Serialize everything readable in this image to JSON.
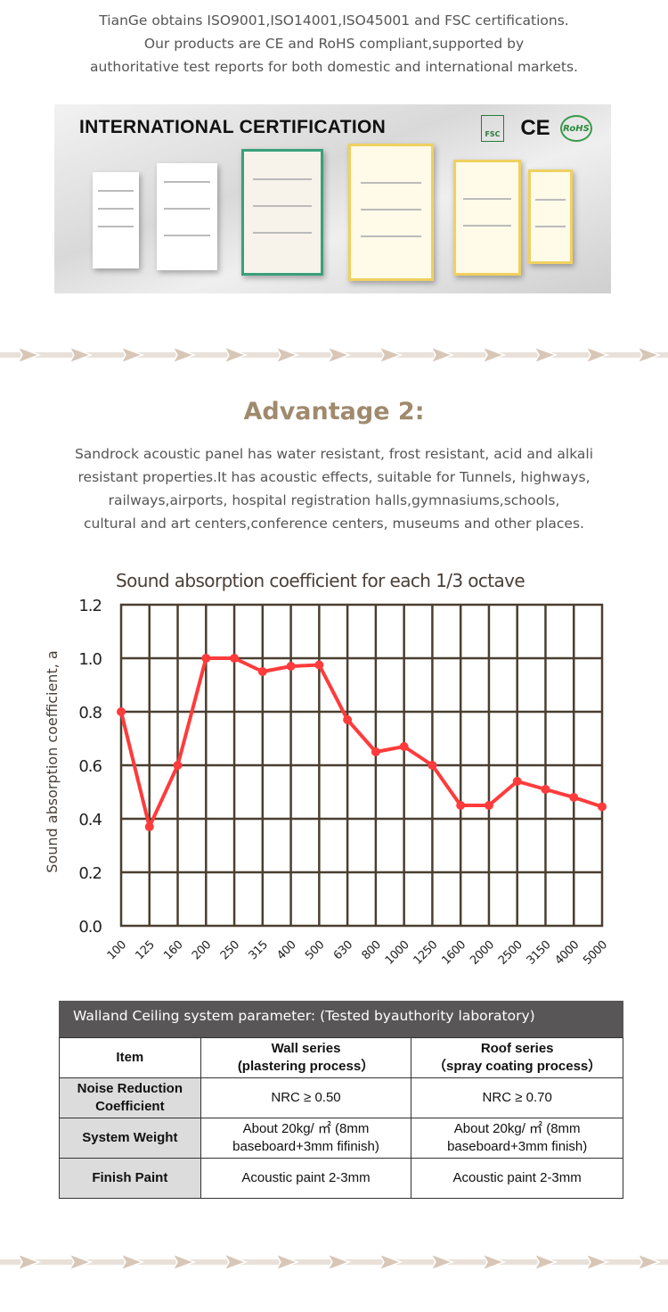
{
  "intro": {
    "lines": [
      "TianGe obtains ISO9001,ISO14001,ISO45001 and FSC certifications.",
      "Our products are CE and RoHS compliant,supported by",
      "authoritative test reports for both domestic and international markets."
    ]
  },
  "banner": {
    "title": "INTERNATIONAL CERTIFICATION",
    "logos": [
      "FSC",
      "CE",
      "RoHS"
    ]
  },
  "advantage": {
    "heading": "Advantage 2:",
    "lines": [
      "Sandrock acoustic panel has water resistant, frost resistant, acid and alkali",
      "resistant properties.It has acoustic effects, suitable for Tunnels, highways,",
      "railways,airports, hospital registration halls,gymnasiums,schools,",
      "cultural and art centers,conference centers, museums and other places."
    ]
  },
  "chart_data": {
    "type": "line",
    "title": "Sound absorption coefficient for each 1/3 octave",
    "xlabel": "",
    "ylabel": "Sound absorption coefficient, a",
    "categories": [
      "100",
      "125",
      "160",
      "200",
      "250",
      "315",
      "400",
      "500",
      "630",
      "800",
      "1000",
      "1250",
      "1600",
      "2000",
      "2500",
      "3150",
      "4000",
      "5000"
    ],
    "values": [
      0.8,
      0.37,
      0.6,
      1.0,
      1.0,
      0.95,
      0.97,
      0.975,
      0.77,
      0.65,
      0.67,
      0.6,
      0.45,
      0.45,
      0.54,
      0.51,
      0.48,
      0.445
    ],
    "ylim": [
      0,
      1.2
    ],
    "yticks": [
      "0.0",
      "0.2",
      "0.4",
      "0.6",
      "0.8",
      "1.0",
      "1.2"
    ],
    "grid": true,
    "line_color": "#ff3b3b",
    "grid_color": "#4a3f30"
  },
  "table": {
    "caption": "Walland Ceiling system parameter: (Tested byauthority laboratory)",
    "headers": [
      "Item",
      "Wall series\n(plastering process）",
      "Roof series\n（spray coating process）"
    ],
    "rows": [
      [
        "Noise Reduction Coefficient",
        "NRC ≥ 0.50",
        "NRC ≥ 0.70"
      ],
      [
        "System Weight",
        "About 20kg/ ㎡ (8mm baseboard+3mm fifinish)",
        "About 20kg/ ㎡ (8mm baseboard+3mm finish)"
      ],
      [
        "Finish Paint",
        "Acoustic paint 2-3mm",
        "Acoustic paint 2-3mm"
      ]
    ]
  }
}
